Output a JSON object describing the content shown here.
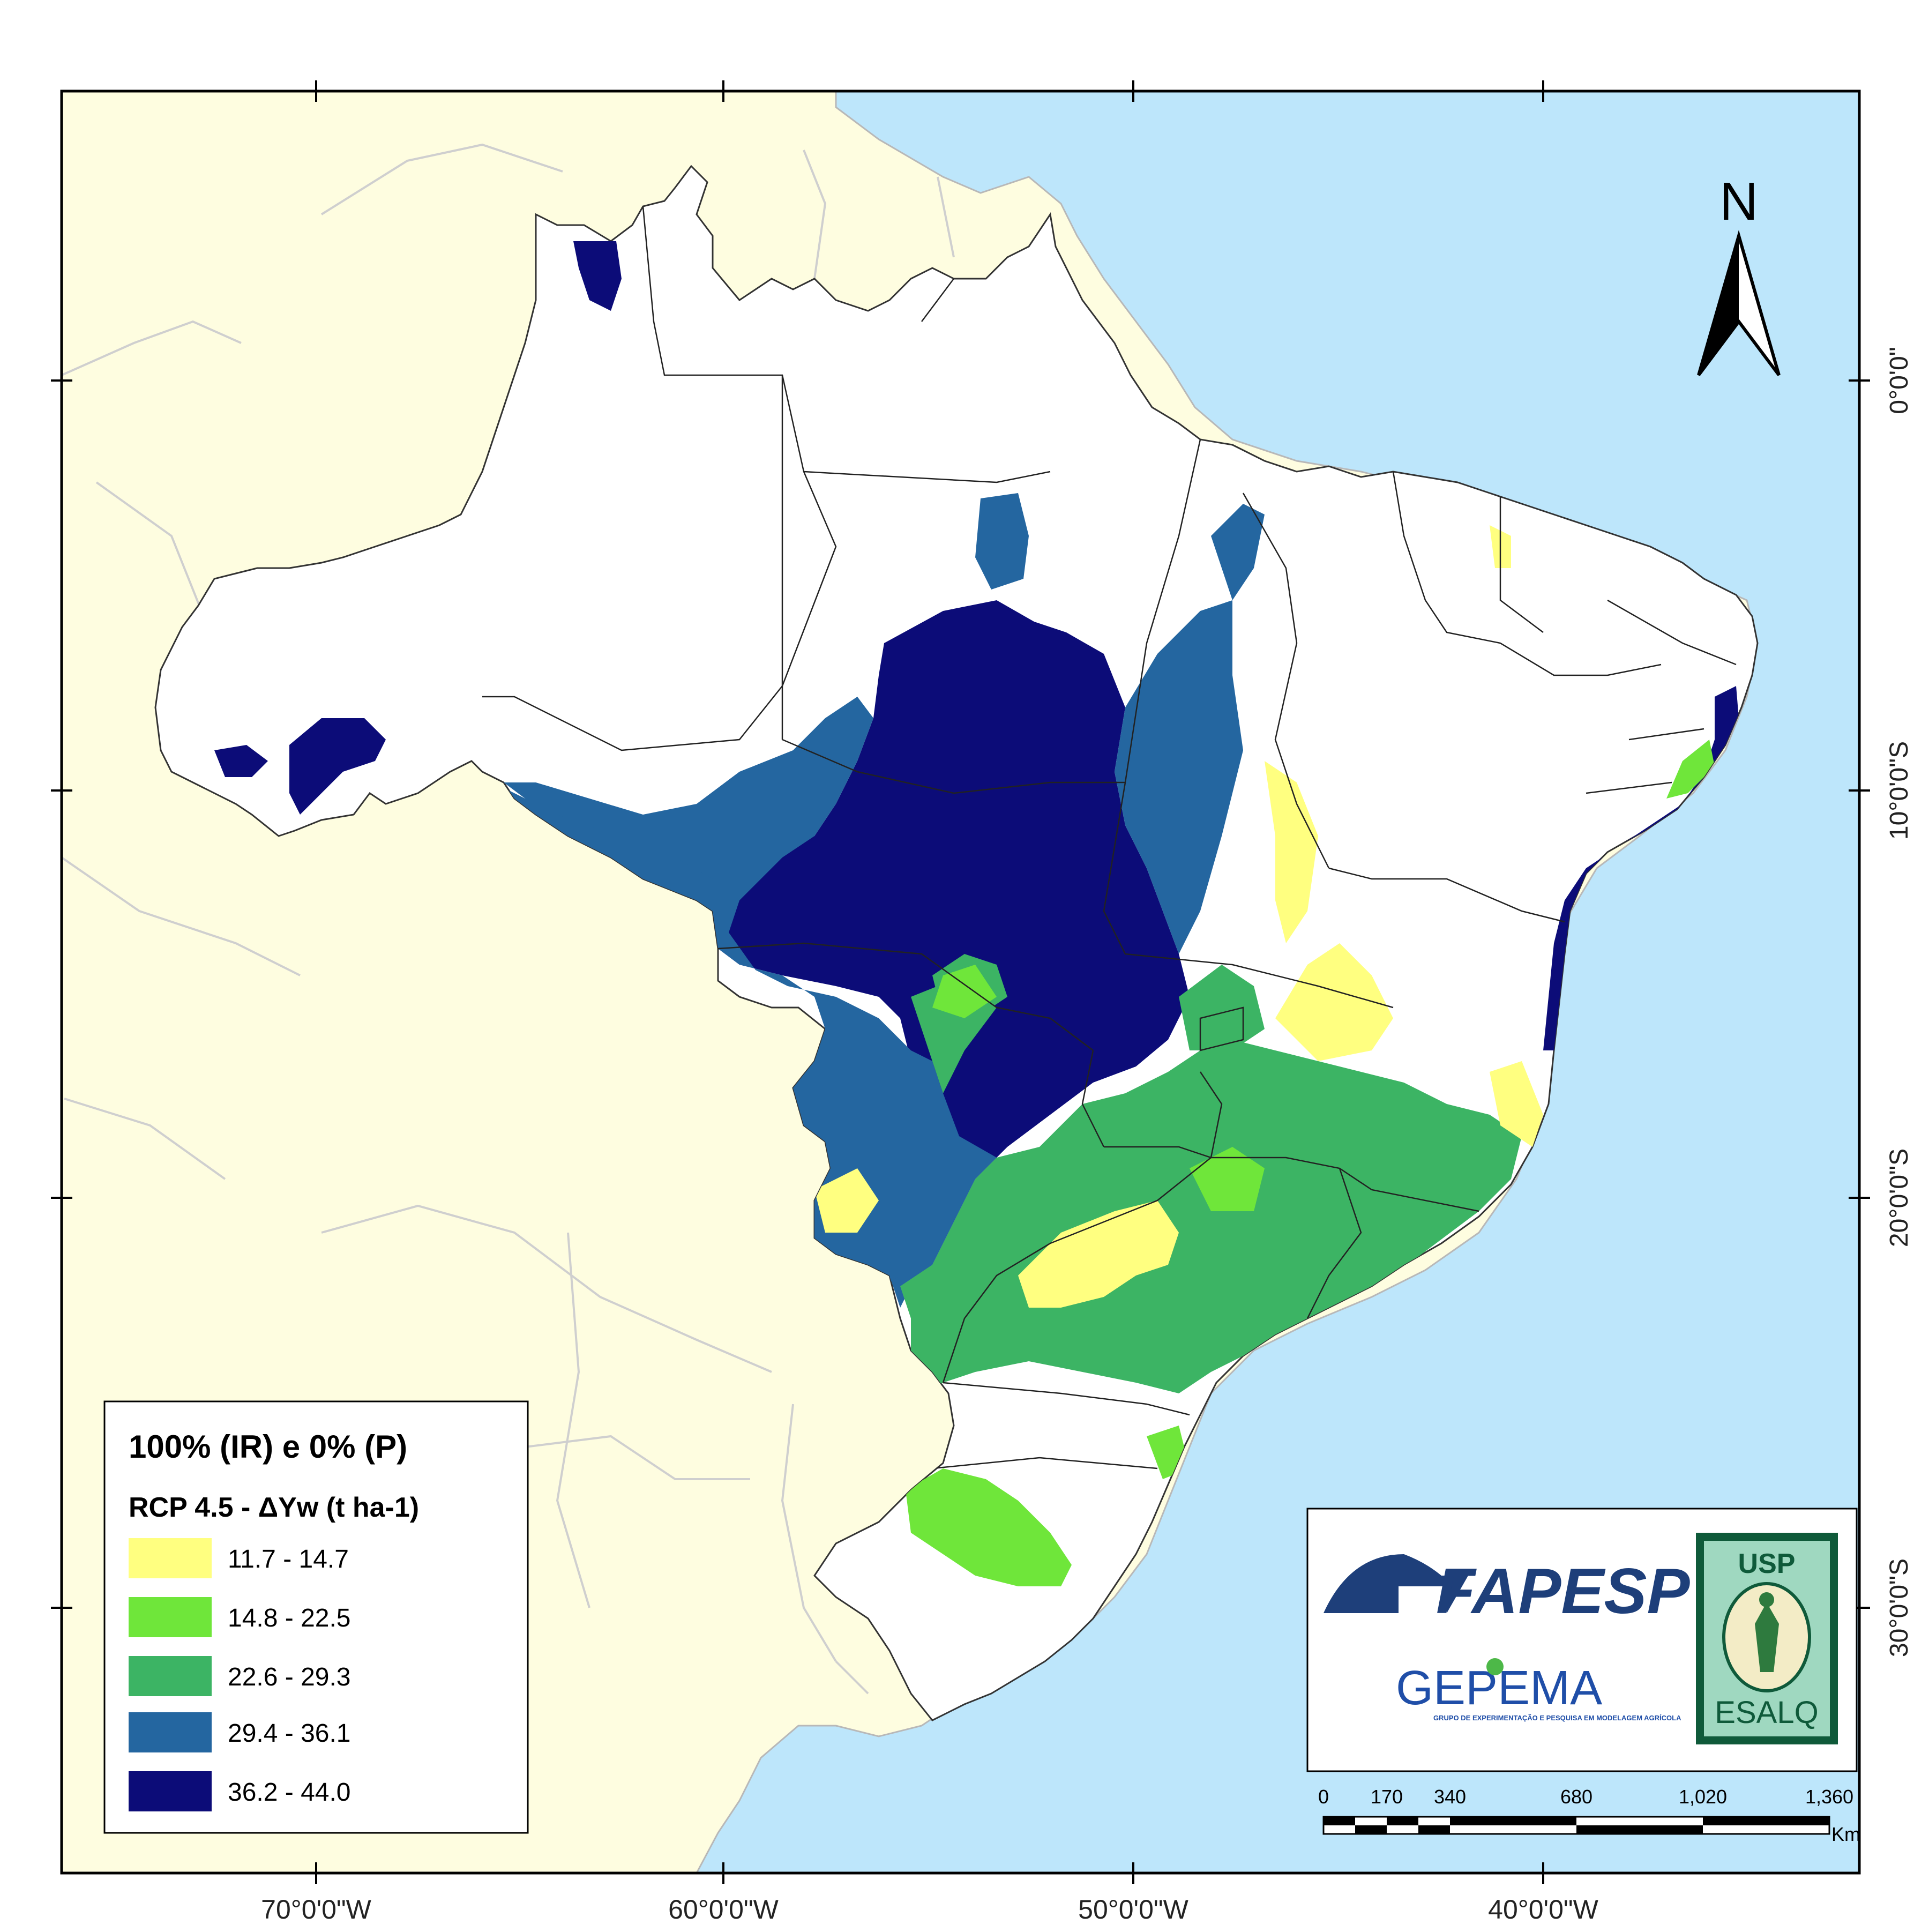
{
  "map": {
    "graticule": {
      "lon_labels": [
        "70°0'0\"W",
        "60°0'0\"W",
        "50°0'0\"W",
        "40°0'0\"W"
      ],
      "lat_labels": [
        "0°0'0\"",
        "10°0'0\"S",
        "20°0'0\"S",
        "30°0'0\"S"
      ]
    },
    "north_arrow": {
      "label": "N"
    },
    "legend": {
      "title": "100% (IR) e 0% (P)",
      "subtitle": "RCP 4.5 - ΔYw (t ha-1)",
      "classes": [
        {
          "label": "11.7 - 14.7",
          "color": "#ffff80"
        },
        {
          "label": "14.8 - 22.5",
          "color": "#6fe63a"
        },
        {
          "label": "22.6 - 29.3",
          "color": "#3cb464"
        },
        {
          "label": "29.4 - 36.1",
          "color": "#2466a0"
        },
        {
          "label": "36.2 - 44.0",
          "color": "#0c0c78"
        }
      ]
    },
    "logos": {
      "fapesp": "FAPESP",
      "gepema": "GEPEMA",
      "gepema_sub": "GRUPO DE EXPERIMENTAÇÃO E PESQUISA EM MODELAGEM AGRÍCOLA",
      "usp": "USP",
      "esalq": "ESALQ"
    },
    "scale_bar": {
      "ticks": [
        "0",
        "170",
        "340",
        "680",
        "1,020",
        "1,360"
      ],
      "unit": "Km"
    },
    "colors": {
      "ocean": "#bde6fb",
      "land_outside": "#fefde0",
      "brazil": "#ffffff",
      "state_border": "#222222"
    }
  }
}
